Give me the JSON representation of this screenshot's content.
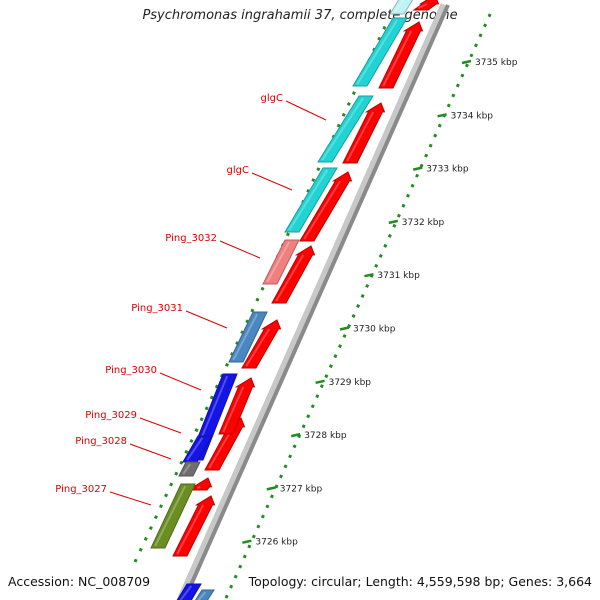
{
  "title": "Psychromonas ingrahamii 37, complete genome",
  "footer": {
    "accession": "Accession: NC_008709",
    "summary": "Topology: circular; Length: 4,559,598 bp; Genes: 3,664"
  },
  "colors": {
    "reverse_strand_gene": "#ff0000",
    "ruler": "#228b22",
    "label": "#dd0000",
    "backbone": "#8a8a8a"
  },
  "scale_ticks": [
    {
      "label": "3735 kbp",
      "kbp": 3735
    },
    {
      "label": "3734 kbp",
      "kbp": 3734
    },
    {
      "label": "3733 kbp",
      "kbp": 3733
    },
    {
      "label": "3732 kbp",
      "kbp": 3732
    },
    {
      "label": "3731 kbp",
      "kbp": 3731
    },
    {
      "label": "3730 kbp",
      "kbp": 3730
    },
    {
      "label": "3729 kbp",
      "kbp": 3729
    },
    {
      "label": "3728 kbp",
      "kbp": 3728
    },
    {
      "label": "3727 kbp",
      "kbp": 3727
    },
    {
      "label": "3726 kbp",
      "kbp": 3726
    }
  ],
  "gene_labels": [
    {
      "label": "glgC",
      "color_name": "cyan",
      "color": "#22d3d3"
    },
    {
      "label": "glgC",
      "color_name": "cyan",
      "color": "#22d3d3"
    },
    {
      "label": "Ping_3032",
      "color_name": "salmon",
      "color": "#f08080"
    },
    {
      "label": "Ping_3031",
      "color_name": "steel-blue",
      "color": "#4a86c0"
    },
    {
      "label": "Ping_3030",
      "color_name": "blue",
      "color": "#1414e6"
    },
    {
      "label": "Ping_3029",
      "color_name": "blue",
      "color": "#1414e6"
    },
    {
      "label": "Ping_3028",
      "color_name": "gray",
      "color": "#6e6e6e"
    },
    {
      "label": "Ping_3027",
      "color_name": "olive",
      "color": "#6b8e23"
    }
  ]
}
